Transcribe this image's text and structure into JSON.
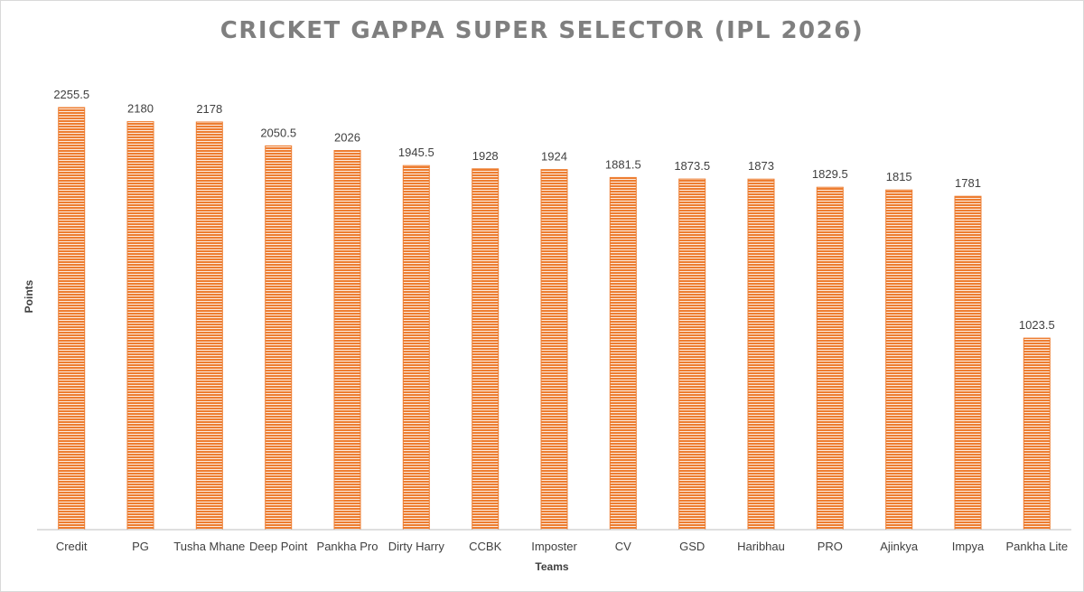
{
  "colors": {
    "bar_fill": "#ed7d31",
    "bar_stripe": "#ffffff",
    "axis_line": "#bfbfbf",
    "title": "#7f7f7f",
    "label": "#404040"
  },
  "chart_data": {
    "type": "bar",
    "title": "CRICKET GAPPA SUPER SELECTOR (IPL 2026)",
    "xlabel": "Teams",
    "ylabel": "Points",
    "ylim": [
      0,
      2300
    ],
    "grid": false,
    "legend": "none",
    "categories": [
      "Credit",
      "PG",
      "Tusha Mhane",
      "Deep Point",
      "Pankha Pro",
      "Dirty Harry",
      "CCBK",
      "Imposter",
      "CV",
      "GSD",
      "Haribhau",
      "PRO",
      "Ajinkya",
      "Impya",
      "Pankha Lite"
    ],
    "values": [
      2255.5,
      2180,
      2178,
      2050.5,
      2026,
      1945.5,
      1928,
      1924,
      1881.5,
      1873.5,
      1873,
      1829.5,
      1815,
      1781,
      1023.5
    ],
    "data_labels": [
      "2255.5",
      "2180",
      "2178",
      "2050.5",
      "2026",
      "1945.5",
      "1928",
      "1924",
      "1881.5",
      "1873.5",
      "1873",
      "1829.5",
      "1815",
      "1781",
      "1023.5"
    ]
  }
}
